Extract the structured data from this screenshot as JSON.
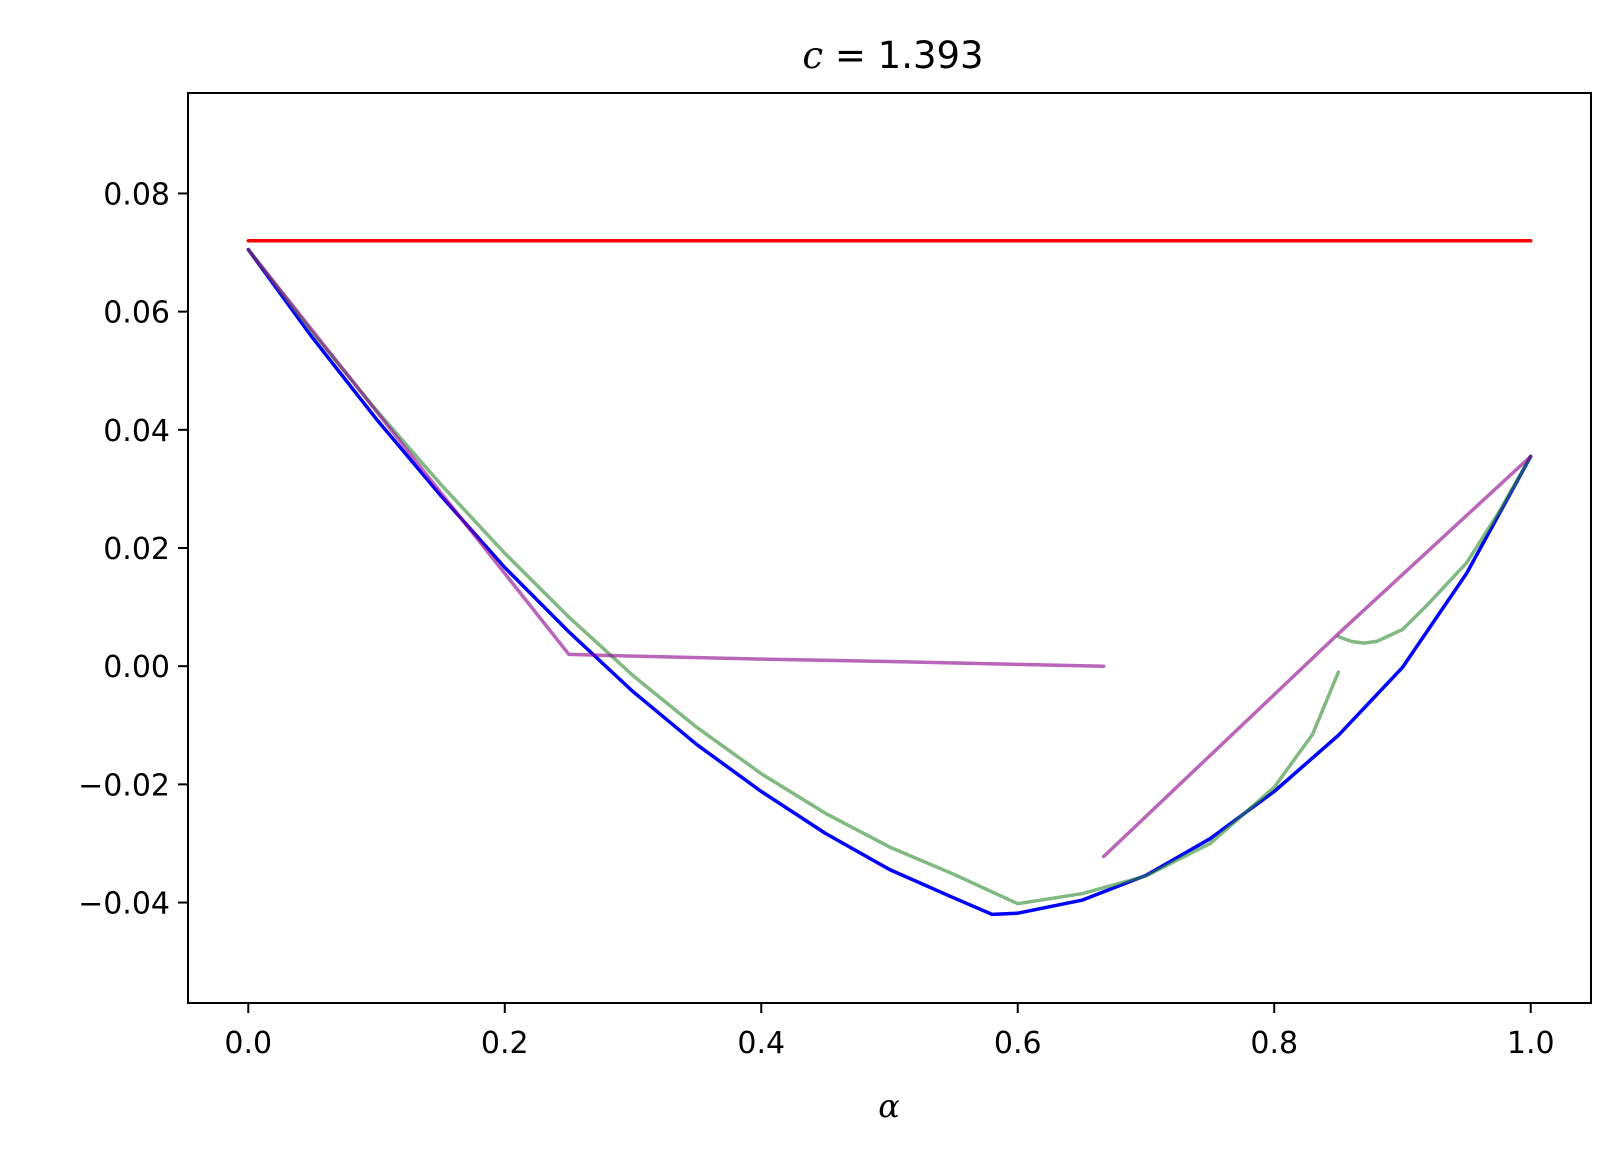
{
  "chart_data": {
    "type": "line",
    "title_var": "c",
    "title_rest": " = 1.393",
    "xlabel": "α",
    "ylabel": "",
    "xlim": [
      -0.047,
      1.047
    ],
    "ylim": [
      -0.057,
      0.097
    ],
    "x_ticks": [
      0.0,
      0.2,
      0.4,
      0.6,
      0.8,
      1.0
    ],
    "x_tick_labels": [
      "0.0",
      "0.2",
      "0.4",
      "0.6",
      "0.8",
      "1.0"
    ],
    "y_ticks": [
      -0.04,
      -0.02,
      0.0,
      0.02,
      0.04,
      0.06,
      0.08
    ],
    "y_tick_labels": [
      "−0.04",
      "−0.02",
      "0.00",
      "0.02",
      "0.04",
      "0.06",
      "0.08"
    ],
    "grid": false,
    "legend": "none",
    "series": [
      {
        "color": "#ff0000",
        "opacity": 1.0,
        "x": [
          0.0,
          1.0
        ],
        "y": [
          0.072,
          0.072
        ]
      },
      {
        "color": "#0000ff",
        "opacity": 1.0,
        "x": [
          0.0,
          0.05,
          0.1,
          0.15,
          0.2,
          0.25,
          0.3,
          0.35,
          0.4,
          0.45,
          0.5,
          0.55,
          0.58,
          0.6,
          0.65,
          0.7,
          0.75,
          0.8,
          0.85,
          0.9,
          0.95,
          1.0
        ],
        "y": [
          0.0705,
          0.0556,
          0.0418,
          0.0289,
          0.0167,
          0.0058,
          -0.0043,
          -0.0133,
          -0.0212,
          -0.0283,
          -0.0344,
          -0.0392,
          -0.042,
          -0.0418,
          -0.0396,
          -0.0354,
          -0.0292,
          -0.0212,
          -0.0117,
          -0.0002,
          0.0157,
          0.0355
        ]
      },
      {
        "color": "#2e8b2e",
        "opacity": 0.6,
        "x": [
          0.0,
          0.05,
          0.1,
          0.15,
          0.2,
          0.25,
          0.3,
          0.35,
          0.4,
          0.45,
          0.5,
          0.55,
          0.6,
          0.65,
          0.7,
          0.75,
          0.8,
          0.83,
          0.85
        ],
        "y": [
          0.0705,
          0.0565,
          0.0433,
          0.0308,
          0.0191,
          0.0083,
          -0.0016,
          -0.0104,
          -0.0182,
          -0.0249,
          -0.0306,
          -0.0352,
          -0.0402,
          -0.0385,
          -0.0355,
          -0.03,
          -0.0205,
          -0.0115,
          -0.001
        ]
      },
      {
        "color": "#2e8b2e",
        "opacity": 0.6,
        "x": [
          0.85,
          0.86,
          0.87,
          0.88,
          0.9,
          0.92,
          0.95,
          0.975,
          1.0
        ],
        "y": [
          0.005,
          0.0042,
          0.0039,
          0.0042,
          0.0062,
          0.0105,
          0.0175,
          0.026,
          0.0355
        ]
      },
      {
        "color": "#8b008b",
        "opacity": 0.6,
        "x": [
          0.0,
          0.25,
          0.3,
          0.4,
          0.5,
          0.6,
          0.667
        ],
        "y": [
          0.0705,
          0.002,
          0.0017,
          0.0012,
          0.0008,
          0.0003,
          0.0
        ]
      },
      {
        "color": "#8b008b",
        "opacity": 0.6,
        "x": [
          0.667,
          0.85,
          1.0
        ],
        "y": [
          -0.0322,
          0.0055,
          0.0355
        ]
      }
    ]
  }
}
